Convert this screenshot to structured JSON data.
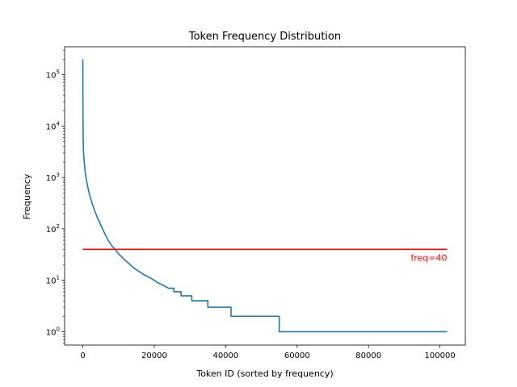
{
  "chart_data": {
    "type": "line",
    "title": "Token Frequency Distribution",
    "xlabel": "Token ID (sorted by frequency)",
    "ylabel": "Frequency",
    "xscale": "linear",
    "yscale": "log",
    "xlim": [
      -5100,
      107100
    ],
    "ylim": [
      0.55,
      350000
    ],
    "grid": false,
    "x_ticks": [
      0,
      20000,
      40000,
      60000,
      80000,
      100000
    ],
    "x_tick_labels": [
      "0",
      "20000",
      "40000",
      "60000",
      "80000",
      "100000"
    ],
    "y_ticks": [
      1,
      10,
      100,
      1000,
      10000,
      100000
    ],
    "y_tick_labels": [
      {
        "base": "10",
        "exp": "0"
      },
      {
        "base": "10",
        "exp": "1"
      },
      {
        "base": "10",
        "exp": "2"
      },
      {
        "base": "10",
        "exp": "3"
      },
      {
        "base": "10",
        "exp": "4"
      },
      {
        "base": "10",
        "exp": "5"
      }
    ],
    "series": [
      {
        "color": "#1f77b4",
        "points": [
          [
            0,
            200000
          ],
          [
            20,
            40000
          ],
          [
            50,
            12000
          ],
          [
            100,
            6000
          ],
          [
            200,
            3000
          ],
          [
            400,
            2000
          ],
          [
            700,
            1200
          ],
          [
            1000,
            900
          ],
          [
            1500,
            600
          ],
          [
            2000,
            430
          ],
          [
            3000,
            260
          ],
          [
            4000,
            170
          ],
          [
            5000,
            120
          ],
          [
            6000,
            85
          ],
          [
            7000,
            62
          ],
          [
            8000,
            48
          ],
          [
            9000,
            40
          ],
          [
            10000,
            33
          ],
          [
            11000,
            28
          ],
          [
            12000,
            24
          ],
          [
            13000,
            21
          ],
          [
            14000,
            18
          ],
          [
            15000,
            16
          ],
          [
            16000,
            14.5
          ],
          [
            17000,
            13
          ],
          [
            18000,
            12
          ],
          [
            19000,
            11
          ],
          [
            20000,
            10
          ],
          [
            21000,
            9
          ],
          [
            22500,
            8
          ],
          [
            24000,
            7
          ],
          [
            25500,
            7
          ],
          [
            25500,
            6
          ],
          [
            27500,
            6
          ],
          [
            27500,
            5
          ],
          [
            30500,
            5
          ],
          [
            30500,
            4
          ],
          [
            35000,
            4
          ],
          [
            35000,
            3
          ],
          [
            41500,
            3
          ],
          [
            41500,
            2
          ],
          [
            55000,
            2
          ],
          [
            55000,
            1
          ],
          [
            102000,
            1
          ]
        ]
      }
    ],
    "hline": {
      "y": 40,
      "xmin": 0,
      "xmax": 102000,
      "color": "#ff0000"
    },
    "annotation": {
      "text": "freq=40",
      "x": 102000,
      "y": 40,
      "color": "#ff0000"
    }
  }
}
